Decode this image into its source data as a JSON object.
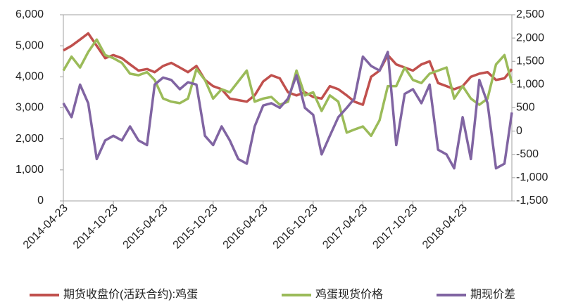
{
  "chart_data": {
    "type": "line",
    "x": [
      "2014-04-23",
      "2014-05-23",
      "2014-06-23",
      "2014-07-23",
      "2014-08-23",
      "2014-09-23",
      "2014-10-23",
      "2014-11-23",
      "2014-12-23",
      "2015-01-23",
      "2015-02-23",
      "2015-03-23",
      "2015-04-23",
      "2015-05-23",
      "2015-06-23",
      "2015-07-23",
      "2015-08-23",
      "2015-09-23",
      "2015-10-23",
      "2015-11-23",
      "2015-12-23",
      "2016-01-23",
      "2016-02-23",
      "2016-03-23",
      "2016-04-23",
      "2016-05-23",
      "2016-06-23",
      "2016-07-23",
      "2016-08-23",
      "2016-09-23",
      "2016-10-23",
      "2016-11-23",
      "2016-12-23",
      "2017-01-23",
      "2017-02-23",
      "2017-03-23",
      "2017-04-23",
      "2017-05-23",
      "2017-06-23",
      "2017-07-23",
      "2017-08-23",
      "2017-09-23",
      "2017-10-23",
      "2017-11-23",
      "2017-12-23",
      "2018-01-23",
      "2018-02-23",
      "2018-03-23",
      "2018-04-23",
      "2018-05-23",
      "2018-06-23",
      "2018-07-23",
      "2018-08-23",
      "2018-09-23",
      "2018-10-20"
    ],
    "xlim": [
      "2014-04-23",
      "2018-10-20"
    ],
    "xticks": [
      "2014-04-23",
      "2014-10-23",
      "2015-04-23",
      "2015-10-23",
      "2016-04-23",
      "2016-10-23",
      "2017-04-23",
      "2017-10-23",
      "2018-04-23"
    ],
    "ylim": [
      0,
      6000
    ],
    "yticks": [
      0,
      {
        "value": 1000,
        "label": "1,000"
      },
      {
        "value": 2000,
        "label": "2,000"
      },
      {
        "value": 3000,
        "label": "3,000"
      },
      {
        "value": 4000,
        "label": "4,000"
      },
      {
        "value": 5000,
        "label": "5,000"
      },
      {
        "value": 6000,
        "label": "6,000"
      }
    ],
    "y2lim": [
      -1500,
      2500
    ],
    "y2ticks": [
      {
        "value": -1500,
        "label": "-1,500"
      },
      {
        "value": -1000,
        "label": "-1,000"
      },
      -500,
      0,
      500,
      {
        "value": 1000,
        "label": "1,000"
      },
      {
        "value": 1500,
        "label": "1,500"
      },
      {
        "value": 2000,
        "label": "2,000"
      },
      {
        "value": 2500,
        "label": "2,500"
      }
    ],
    "series": [
      {
        "name": "期货收盘价(活跃合约):鸡蛋",
        "color": "#c0504d",
        "values": [
          4850,
          5000,
          5200,
          5400,
          5000,
          4600,
          4700,
          4600,
          4400,
          4200,
          4250,
          4150,
          4350,
          4450,
          4300,
          4150,
          4350,
          3900,
          3700,
          3600,
          3300,
          3250,
          3200,
          3400,
          3850,
          4050,
          3950,
          3500,
          3400,
          3500,
          3350,
          3300,
          3700,
          3600,
          3400,
          3200,
          3100,
          4000,
          4200,
          4700,
          4400,
          4300,
          4200,
          4400,
          4500,
          3800,
          3700,
          3600,
          3700,
          4000,
          4100,
          4150,
          3900,
          3950,
          4250
        ]
      },
      {
        "name": "鸡蛋现货价格",
        "color": "#9bbb59",
        "values": [
          4200,
          4650,
          4300,
          4800,
          5200,
          4700,
          4600,
          4450,
          4100,
          4050,
          4150,
          3900,
          3300,
          3200,
          3150,
          3300,
          4250,
          3900,
          3300,
          3600,
          3500,
          3850,
          4200,
          3200,
          3300,
          3350,
          3100,
          3200,
          4200,
          3400,
          3500,
          2900,
          3400,
          3200,
          2200,
          2300,
          2400,
          2100,
          2600,
          3700,
          3700,
          4300,
          3900,
          3800,
          4100,
          4200,
          4300,
          3300,
          3700,
          3300,
          3100,
          3300,
          4400,
          4700,
          3800
        ]
      },
      {
        "name": "期现价差",
        "color": "#8064a2",
        "axis": "y2",
        "values": [
          600,
          300,
          1000,
          600,
          -600,
          -200,
          -100,
          -200,
          100,
          -200,
          -300,
          1000,
          1150,
          1100,
          900,
          1050,
          1000,
          -100,
          -300,
          100,
          -200,
          -600,
          -700,
          100,
          550,
          600,
          500,
          700,
          1200,
          500,
          350,
          -500,
          -100,
          300,
          500,
          700,
          1600,
          1400,
          1300,
          1700,
          -300,
          800,
          900,
          600,
          1000,
          -400,
          -500,
          -800,
          300,
          -600,
          1100,
          600,
          -800,
          -700,
          400
        ]
      }
    ]
  }
}
